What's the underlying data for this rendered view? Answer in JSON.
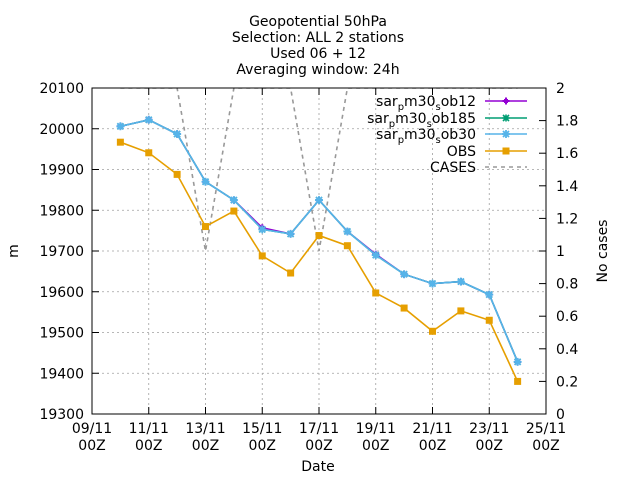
{
  "chart_data": {
    "type": "line",
    "title": [
      "Geopotential 50hPa",
      "Selection: ALL       2 stations",
      "Used 06 + 12",
      "Averaging window: 24h"
    ],
    "xlabel": "Date",
    "ylabel": "m",
    "y2label": "No cases",
    "x_unit": "days (Nov 9 00Z = 0)",
    "xlim": [
      0,
      16
    ],
    "ylim": [
      19300,
      20100
    ],
    "y2lim": [
      0,
      2
    ],
    "xticks": [
      {
        "x": 0,
        "l1": "09/11",
        "l2": "00Z"
      },
      {
        "x": 2,
        "l1": "11/11",
        "l2": "00Z"
      },
      {
        "x": 4,
        "l1": "13/11",
        "l2": "00Z"
      },
      {
        "x": 6,
        "l1": "15/11",
        "l2": "00Z"
      },
      {
        "x": 8,
        "l1": "17/11",
        "l2": "00Z"
      },
      {
        "x": 10,
        "l1": "19/11",
        "l2": "00Z"
      },
      {
        "x": 12,
        "l1": "21/11",
        "l2": "00Z"
      },
      {
        "x": 14,
        "l1": "23/11",
        "l2": "00Z"
      },
      {
        "x": 16,
        "l1": "25/11",
        "l2": "00Z"
      }
    ],
    "yticks": [
      19300,
      19400,
      19500,
      19600,
      19700,
      19800,
      19900,
      20000,
      20100
    ],
    "y2ticks": [
      "0",
      "0.2",
      "0.4",
      "0.6",
      "0.8",
      "1",
      "1.2",
      "1.4",
      "1.6",
      "1.8",
      "2"
    ],
    "grid": true,
    "legend_position": "top-right",
    "x": [
      1,
      2,
      3,
      4,
      5,
      6,
      7,
      8,
      9,
      10,
      11,
      12,
      13,
      14,
      15
    ],
    "series": [
      {
        "name": "sar_pm30_sob12",
        "color": "#9400d3",
        "marker": "plus",
        "values": [
          20006,
          20022,
          19987,
          19870,
          19825,
          19757,
          19742,
          19825,
          19748,
          19692,
          19643,
          19620,
          19625,
          19593,
          19428
        ]
      },
      {
        "name": "sar_pm30_sob185",
        "color": "#009e73",
        "marker": "cross",
        "values": [
          20006,
          20022,
          19987,
          19870,
          19825,
          19753,
          19742,
          19825,
          19748,
          19690,
          19643,
          19620,
          19625,
          19593,
          19428
        ]
      },
      {
        "name": "sar_pm30_sob30",
        "color": "#56b4e9",
        "marker": "star",
        "values": [
          20006,
          20022,
          19987,
          19870,
          19825,
          19753,
          19742,
          19825,
          19748,
          19690,
          19643,
          19620,
          19625,
          19593,
          19428
        ]
      },
      {
        "name": "OBS",
        "color": "#e69f00",
        "marker": "square",
        "values": [
          19967,
          19941,
          19888,
          19760,
          19798,
          19688,
          19646,
          19738,
          19713,
          19597,
          19560,
          19503,
          19553,
          19530,
          19380
        ]
      },
      {
        "name": "CASES",
        "color": "#999999",
        "dashed": true,
        "axis": "y2",
        "values": [
          2,
          2,
          2,
          1,
          2,
          2,
          2,
          1,
          2,
          2,
          2,
          2,
          2,
          2,
          2
        ]
      }
    ]
  }
}
